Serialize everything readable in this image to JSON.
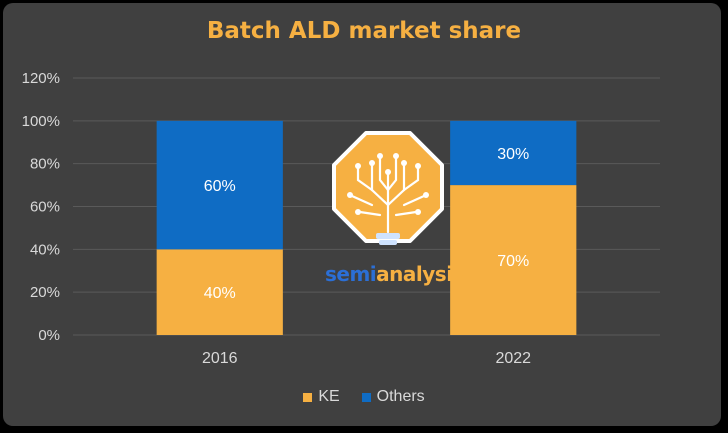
{
  "chart_data": {
    "type": "bar",
    "stacked": true,
    "title": "Batch ALD market share",
    "categories": [
      "2016",
      "2022"
    ],
    "series": [
      {
        "name": "KE",
        "values": [
          40,
          70
        ],
        "labels": [
          "40%",
          "70%"
        ],
        "color": "#f6b042"
      },
      {
        "name": "Others",
        "values": [
          60,
          30
        ],
        "labels": [
          "60%",
          "30%"
        ],
        "color": "#0f6cc4"
      }
    ],
    "y_ticks": [
      "0%",
      "20%",
      "40%",
      "60%",
      "80%",
      "100%",
      "120%"
    ],
    "ylim": [
      0,
      120
    ],
    "grid": true,
    "legend_position": "bottom"
  },
  "watermark": {
    "text_part1": "semi",
    "text_part2": "analysis",
    "colors": {
      "blue": "#2b6fd6",
      "orange": "#f6b042"
    }
  }
}
